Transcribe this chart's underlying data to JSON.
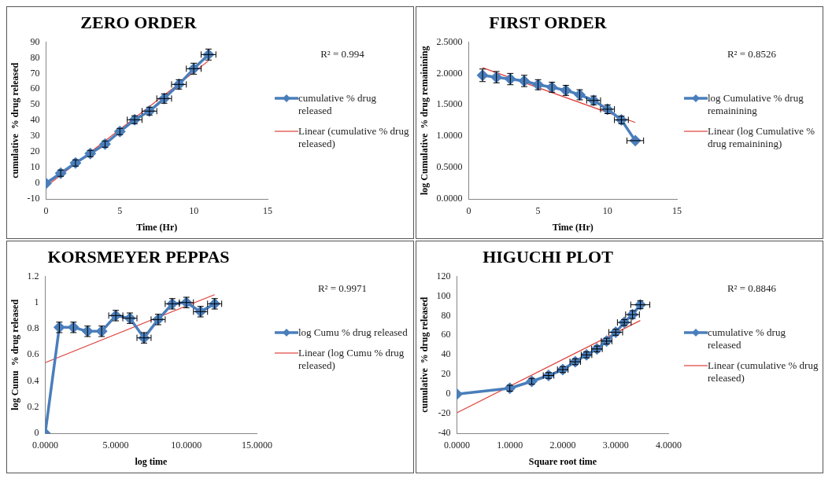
{
  "chart_data": [
    {
      "type": "line",
      "title": "ZERO ORDER",
      "xlabel": "Time (Hr)",
      "ylabel": "cumulative  % drug released",
      "xlim": [
        0,
        15
      ],
      "xticks": [
        0,
        5,
        10,
        15
      ],
      "ylim": [
        -10,
        90
      ],
      "yticks": [
        -10,
        0,
        10,
        20,
        30,
        40,
        50,
        60,
        70,
        80,
        90
      ],
      "grid": false,
      "legend": "right",
      "annotations": [
        "R² = 0.994"
      ],
      "series": [
        {
          "name": "cumulative % drug released",
          "type": "line",
          "color": "#4a7ebb",
          "marker": "diamond",
          "x": [
            0,
            1,
            2,
            3,
            4,
            5,
            6,
            7,
            8,
            9,
            10,
            11
          ],
          "values": [
            0,
            6.5,
            13,
            19,
            25,
            33,
            40.5,
            46,
            54,
            63,
            73,
            82
          ],
          "errors": [
            null,
            2,
            2,
            2,
            2,
            2,
            2.5,
            2.5,
            3,
            3,
            3.5,
            3.5
          ],
          "xerrors": [
            null,
            null,
            null,
            null,
            null,
            null,
            0.5,
            0.5,
            0.5,
            0.5,
            0.5,
            0.5
          ]
        },
        {
          "name": "Linear (cumulative % drug released)",
          "type": "line",
          "color": "#e0403a",
          "marker": "none",
          "x": [
            0,
            11
          ],
          "values": [
            -2,
            78
          ]
        }
      ]
    },
    {
      "type": "line",
      "title": "FIRST ORDER",
      "xlabel": "Time (Hr)",
      "ylabel": "log Cumulative  % drug remainining",
      "xlim": [
        0,
        15
      ],
      "xticks": [
        0,
        5,
        10,
        15
      ],
      "ylim": [
        0,
        2.5
      ],
      "yticks": [
        {
          "value": 0,
          "label": "0.0000"
        },
        {
          "value": 0.5,
          "label": "0.5000"
        },
        {
          "value": 1,
          "label": "1.0000"
        },
        {
          "value": 1.5,
          "label": "1.5000"
        },
        {
          "value": 2,
          "label": "2.0000"
        },
        {
          "value": 2.5,
          "label": "2.5000"
        }
      ],
      "grid": false,
      "legend": "right",
      "annotations": [
        "R² = 0.8526"
      ],
      "series": [
        {
          "name": "log Cumulative  % drug remainining",
          "type": "line",
          "color": "#4a7ebb",
          "marker": "diamond",
          "x": [
            1,
            2,
            3,
            4,
            5,
            6,
            7,
            8,
            9,
            10,
            11,
            12
          ],
          "values": [
            1.97,
            1.94,
            1.91,
            1.88,
            1.82,
            1.78,
            1.73,
            1.66,
            1.57,
            1.43,
            1.26,
            0.93
          ],
          "errors": [
            0.1,
            0.09,
            0.09,
            0.09,
            0.08,
            0.08,
            0.08,
            0.08,
            0.07,
            0.07,
            0.06,
            null
          ],
          "xerrors": [
            null,
            null,
            null,
            null,
            null,
            null,
            null,
            null,
            0.5,
            0.5,
            0.5,
            0.6
          ]
        },
        {
          "name": "Linear (log Cumulative  % drug remainining)",
          "type": "line",
          "color": "#e0403a",
          "marker": "none",
          "x": [
            1,
            12
          ],
          "values": [
            2.09,
            1.22
          ]
        }
      ]
    },
    {
      "type": "line",
      "title": "KORSMEYER PEPPAS",
      "xlabel": "log time",
      "ylabel": "log Cumu  % drug released",
      "xlim": [
        0,
        15
      ],
      "xticks": [
        {
          "value": 0,
          "label": "0.0000"
        },
        {
          "value": 5,
          "label": "5.0000"
        },
        {
          "value": 10,
          "label": "10.0000"
        },
        {
          "value": 15,
          "label": "15.0000"
        }
      ],
      "ylim": [
        0,
        1.2
      ],
      "yticks": [
        0,
        0.2,
        0.4,
        0.6,
        0.8,
        1,
        1.2
      ],
      "grid": false,
      "legend": "right",
      "annotations": [
        "R² = 0.9971"
      ],
      "series": [
        {
          "name": "log Cumu % drug released",
          "type": "line",
          "color": "#4a7ebb",
          "marker": "diamond",
          "x": [
            0,
            1,
            2,
            3,
            4,
            5,
            6,
            7,
            8,
            9,
            10,
            11,
            12
          ],
          "values": [
            0,
            0.81,
            0.81,
            0.78,
            0.78,
            0.9,
            0.88,
            0.73,
            0.87,
            0.99,
            1.0,
            0.93,
            0.99
          ],
          "errors": [
            null,
            0.04,
            0.04,
            0.04,
            0.04,
            0.04,
            0.04,
            0.04,
            0.04,
            0.04,
            0.04,
            0.04,
            0.04
          ],
          "xerrors": [
            null,
            null,
            null,
            null,
            null,
            0.5,
            0.5,
            0.5,
            0.5,
            0.5,
            0.5,
            0.5,
            0.5
          ]
        },
        {
          "name": "Linear (log Cumu % drug released)",
          "type": "line",
          "color": "#e0403a",
          "marker": "none",
          "x": [
            0,
            12
          ],
          "values": [
            0.54,
            1.06
          ]
        }
      ]
    },
    {
      "type": "line",
      "title": "HIGUCHI PLOT",
      "xlabel": "Square root time",
      "ylabel": "cumulative  % drug released",
      "xlim": [
        0,
        4
      ],
      "xticks": [
        {
          "value": 0,
          "label": "0.0000"
        },
        {
          "value": 1,
          "label": "1.0000"
        },
        {
          "value": 2,
          "label": "2.0000"
        },
        {
          "value": 3,
          "label": "3.0000"
        },
        {
          "value": 4,
          "label": "4.0000"
        }
      ],
      "ylim": [
        -40,
        120
      ],
      "yticks": [
        -40,
        -20,
        0,
        20,
        40,
        60,
        80,
        100,
        120
      ],
      "grid": false,
      "legend": "right",
      "annotations": [
        "R² = 0.8846"
      ],
      "series": [
        {
          "name": "cumulative % drug released",
          "type": "line",
          "color": "#4a7ebb",
          "marker": "diamond",
          "x": [
            0,
            1,
            1.414,
            1.732,
            2,
            2.236,
            2.449,
            2.646,
            2.828,
            3,
            3.162,
            3.317,
            3.464
          ],
          "values": [
            0,
            6,
            13,
            19,
            25,
            33,
            40,
            46,
            54,
            63,
            73,
            81,
            91
          ],
          "errors": [
            null,
            3,
            3,
            3,
            3,
            3,
            3,
            3,
            3,
            3,
            3,
            4,
            4
          ],
          "xerrors": [
            null,
            null,
            null,
            0.1,
            0.1,
            0.1,
            0.1,
            0.1,
            0.1,
            0.13,
            0.13,
            0.13,
            0.18
          ]
        },
        {
          "name": "Linear (cumulative % drug released)",
          "type": "line",
          "color": "#e0403a",
          "marker": "none",
          "x": [
            0,
            3.464
          ],
          "values": [
            -19,
            75
          ]
        }
      ]
    }
  ]
}
